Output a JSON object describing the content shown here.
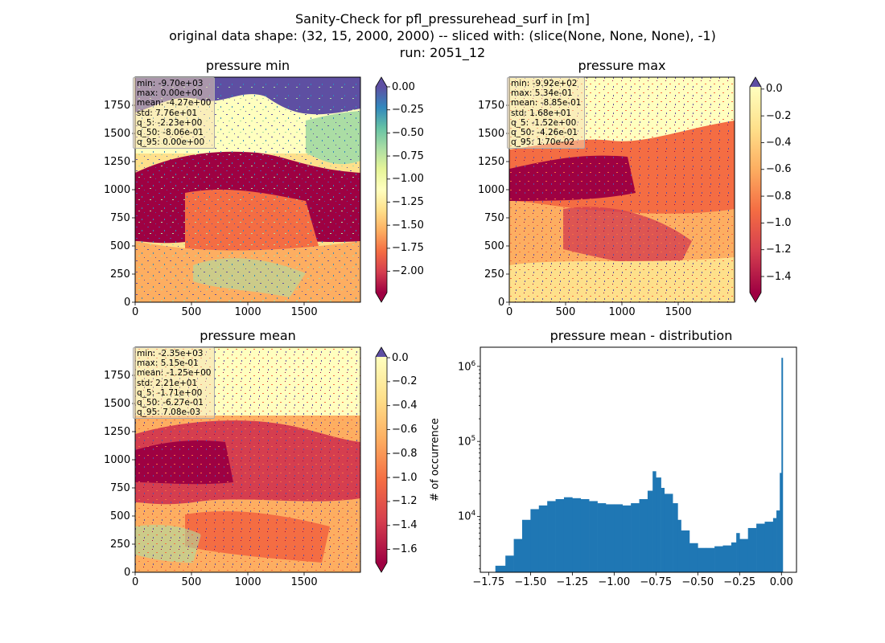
{
  "suptitle": {
    "line1": "Sanity-Check for pfl_pressurehead_surf in [m]",
    "line2": "original data shape: (32, 15, 2000, 2000) -- sliced with: (slice(None, None, None), -1)",
    "line3": "run: 2051_12"
  },
  "chart_data": [
    {
      "type": "heatmap",
      "title": "pressure min",
      "x_ticks": [
        "0",
        "500",
        "1000",
        "1500"
      ],
      "y_ticks": [
        "0",
        "250",
        "500",
        "750",
        "1000",
        "1250",
        "1500",
        "1750"
      ],
      "xlim": [
        0,
        2000
      ],
      "ylim": [
        0,
        2000
      ],
      "colormap": "Spectral",
      "colorbar": {
        "ticks": [
          "0.00",
          "−0.25",
          "−0.50",
          "−0.75",
          "−1.00",
          "−1.25",
          "−1.50",
          "−1.75",
          "−2.00"
        ],
        "range": [
          -2.23,
          0.0
        ],
        "extend": "both"
      },
      "stats": [
        "min: -9.70e+03",
        "max: 0.00e+00",
        "mean: -4.27e+00",
        "std: 7.76e+01",
        "q_5: -2.23e+00",
        "q_50: -8.06e-01",
        "q_95: 0.00e+00"
      ]
    },
    {
      "type": "heatmap",
      "title": "pressure max",
      "x_ticks": [
        "0",
        "500",
        "1000",
        "1500"
      ],
      "y_ticks": [
        "0",
        "250",
        "500",
        "750",
        "1000",
        "1250",
        "1500",
        "1750"
      ],
      "xlim": [
        0,
        2000
      ],
      "ylim": [
        0,
        2000
      ],
      "colormap": "Spectral",
      "colorbar": {
        "ticks": [
          "0.0",
          "−0.2",
          "−0.4",
          "−0.6",
          "−0.8",
          "−1.0",
          "−1.2",
          "−1.4"
        ],
        "range": [
          -1.52,
          0.017
        ],
        "extend": "both"
      },
      "stats": [
        "min: -9.92e+02",
        "max: 5.34e-01",
        "mean: -8.85e-01",
        "std: 1.68e+01",
        "q_5: -1.52e+00",
        "q_50: -4.26e-01",
        "q_95: 1.70e-02"
      ]
    },
    {
      "type": "heatmap",
      "title": "pressure mean",
      "x_ticks": [
        "0",
        "500",
        "1000",
        "1500"
      ],
      "y_ticks": [
        "0",
        "250",
        "500",
        "750",
        "1000",
        "1250",
        "1500",
        "1750"
      ],
      "xlim": [
        0,
        2000
      ],
      "ylim": [
        0,
        2000
      ],
      "colormap": "Spectral",
      "colorbar": {
        "ticks": [
          "0.0",
          "−0.2",
          "−0.4",
          "−0.6",
          "−0.8",
          "−1.0",
          "−1.2",
          "−1.4",
          "−1.6"
        ],
        "range": [
          -1.71,
          0.007
        ],
        "extend": "both"
      },
      "stats": [
        "min: -2.35e+03",
        "max: 5.15e-01",
        "mean: -1.25e+00",
        "std: 2.21e+01",
        "q_5: -1.71e+00",
        "q_50: -6.27e-01",
        "q_95: 7.08e-03"
      ]
    },
    {
      "type": "bar",
      "subtype": "histogram",
      "title": "pressure mean - distribution",
      "ylabel": "# of occurrence",
      "yscale": "log",
      "ylim": [
        1800,
        1800000
      ],
      "xlim": [
        -1.8,
        0.09
      ],
      "x_ticks": [
        "−1.75",
        "−1.50",
        "−1.25",
        "−1.00",
        "−0.75",
        "−0.50",
        "−0.25",
        "0.00"
      ],
      "y_ticks": [
        {
          "base": "10",
          "exp": "4",
          "value": 10000
        },
        {
          "base": "10",
          "exp": "5",
          "value": 100000
        },
        {
          "base": "10",
          "exp": "6",
          "value": 1000000
        }
      ],
      "color": "#1f77b4",
      "bins": [
        [
          -1.71,
          2200
        ],
        [
          -1.65,
          3000
        ],
        [
          -1.6,
          5000
        ],
        [
          -1.55,
          9000
        ],
        [
          -1.5,
          12500
        ],
        [
          -1.45,
          14000
        ],
        [
          -1.4,
          16000
        ],
        [
          -1.35,
          17000
        ],
        [
          -1.3,
          18000
        ],
        [
          -1.25,
          17500
        ],
        [
          -1.2,
          17000
        ],
        [
          -1.15,
          16000
        ],
        [
          -1.1,
          15000
        ],
        [
          -1.05,
          14500
        ],
        [
          -1.0,
          14500
        ],
        [
          -0.95,
          14000
        ],
        [
          -0.9,
          15000
        ],
        [
          -0.85,
          17000
        ],
        [
          -0.8,
          22000
        ],
        [
          -0.77,
          40000
        ],
        [
          -0.75,
          33000
        ],
        [
          -0.72,
          24000
        ],
        [
          -0.7,
          20000
        ],
        [
          -0.65,
          15000
        ],
        [
          -0.62,
          9000
        ],
        [
          -0.6,
          6500
        ],
        [
          -0.55,
          4400
        ],
        [
          -0.5,
          3800
        ],
        [
          -0.45,
          3800
        ],
        [
          -0.4,
          4000
        ],
        [
          -0.35,
          4100
        ],
        [
          -0.3,
          4500
        ],
        [
          -0.27,
          6000
        ],
        [
          -0.25,
          5000
        ],
        [
          -0.2,
          7000
        ],
        [
          -0.15,
          8000
        ],
        [
          -0.1,
          8500
        ],
        [
          -0.05,
          9500
        ],
        [
          -0.03,
          12000
        ],
        [
          -0.01,
          38000
        ],
        [
          0.0,
          1300000
        ]
      ]
    }
  ]
}
